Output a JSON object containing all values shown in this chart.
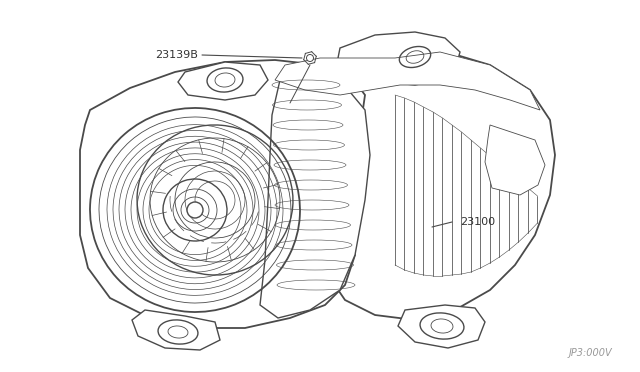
{
  "bg_color": "#ffffff",
  "line_color": "#4a4a4a",
  "label_color": "#333333",
  "part_label_1": "23139B",
  "part_label_2": "23100",
  "diagram_code": "JP3:000V",
  "fig_width": 6.4,
  "fig_height": 3.72,
  "dpi": 100,
  "lw_main": 1.0,
  "lw_thin": 0.6,
  "lw_thick": 1.3
}
